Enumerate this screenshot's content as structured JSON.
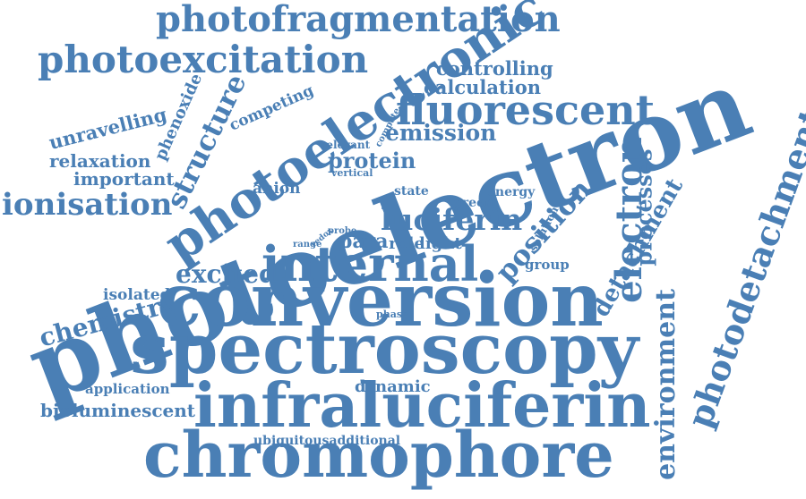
{
  "colors": {
    "word": "#4a7fb5",
    "background": "#ffffff"
  },
  "words": {
    "photoelectron": "photoelectron",
    "conversion": "conversion",
    "spectroscopy": "spectroscopy",
    "infraluciferin": "infraluciferin",
    "chromophore": "chromophore",
    "photoelectronic": "photoelectronic",
    "internal": "internal",
    "photofragmentation": "photofragmentation",
    "photoexcitation": "photoexcitation",
    "fluorescent": "fluorescent",
    "photodetachment": "photodetachment",
    "environment": "environment",
    "detachment": "detachment",
    "electron": "electron",
    "position": "position",
    "processes": "processes",
    "luciferin": "luciferin",
    "structure": "structure",
    "ionisation": "ionisation",
    "excited": "excited",
    "chemistry": "chemistry",
    "unravelling": "unravelling",
    "relaxation": "relaxation",
    "important": "important",
    "phenoxide": "phenoxide",
    "competing": "competing",
    "controlling": "controlling",
    "calculation": "calculation",
    "emission": "emission",
    "protein": "protein",
    "anion": "anion",
    "para": "para",
    "isolated": "isolated",
    "application": "application",
    "bioluminescent": "bioluminescent",
    "dynamic": "dynamic",
    "ubiquitousadditional": "ubiquitousadditional",
    "state": "state",
    "green": "green",
    "energy": "energy",
    "role": "role",
    "light": "light",
    "group": "group",
    "solution": "solution",
    "relevant": "relevant",
    "vertical": "vertical",
    "compete": "compete",
    "probe": "probe",
    "redox": "redox",
    "range": "range",
    "phase": "phase"
  }
}
